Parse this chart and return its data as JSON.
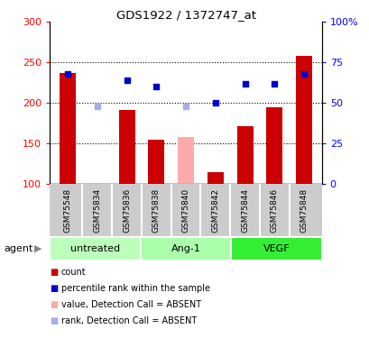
{
  "title": "GDS1922 / 1372747_at",
  "samples": [
    "GSM75548",
    "GSM75834",
    "GSM75836",
    "GSM75838",
    "GSM75840",
    "GSM75842",
    "GSM75844",
    "GSM75846",
    "GSM75848"
  ],
  "bar_values": [
    237,
    null,
    192,
    155,
    158,
    115,
    172,
    195,
    258
  ],
  "bar_colors": [
    "#cc0000",
    null,
    "#cc0000",
    "#cc0000",
    "#ffaaaa",
    "#cc0000",
    "#cc0000",
    "#cc0000",
    "#cc0000"
  ],
  "rank_values": [
    68,
    48,
    64,
    60,
    48,
    50,
    62,
    62,
    68
  ],
  "rank_colors": [
    "#0000cc",
    "#aaaaee",
    "#0000cc",
    "#0000cc",
    "#aaaaee",
    "#0000cc",
    "#0000cc",
    "#0000cc",
    "#0000cc"
  ],
  "ylim_left": [
    100,
    300
  ],
  "ylim_right": [
    0,
    100
  ],
  "yticks_left": [
    100,
    150,
    200,
    250,
    300
  ],
  "ytick_labels_left": [
    "100",
    "150",
    "200",
    "250",
    "300"
  ],
  "yticks_right": [
    0,
    25,
    50,
    75,
    100
  ],
  "ytick_labels_right": [
    "0",
    "25",
    "50",
    "75",
    "100%"
  ],
  "groups": [
    {
      "label": "untreated",
      "indices": [
        0,
        1,
        2
      ],
      "color": "#bbffbb"
    },
    {
      "label": "Ang-1",
      "indices": [
        3,
        4,
        5
      ],
      "color": "#aaffaa"
    },
    {
      "label": "VEGF",
      "indices": [
        6,
        7,
        8
      ],
      "color": "#33ee33"
    }
  ],
  "legend_items": [
    {
      "label": "count",
      "color": "#cc0000"
    },
    {
      "label": "percentile rank within the sample",
      "color": "#0000cc"
    },
    {
      "label": "value, Detection Call = ABSENT",
      "color": "#ffaaaa"
    },
    {
      "label": "rank, Detection Call = ABSENT",
      "color": "#aaaaee"
    }
  ],
  "agent_label": "agent",
  "bar_baseline": 100,
  "hgrid_values": [
    150,
    200,
    250
  ]
}
